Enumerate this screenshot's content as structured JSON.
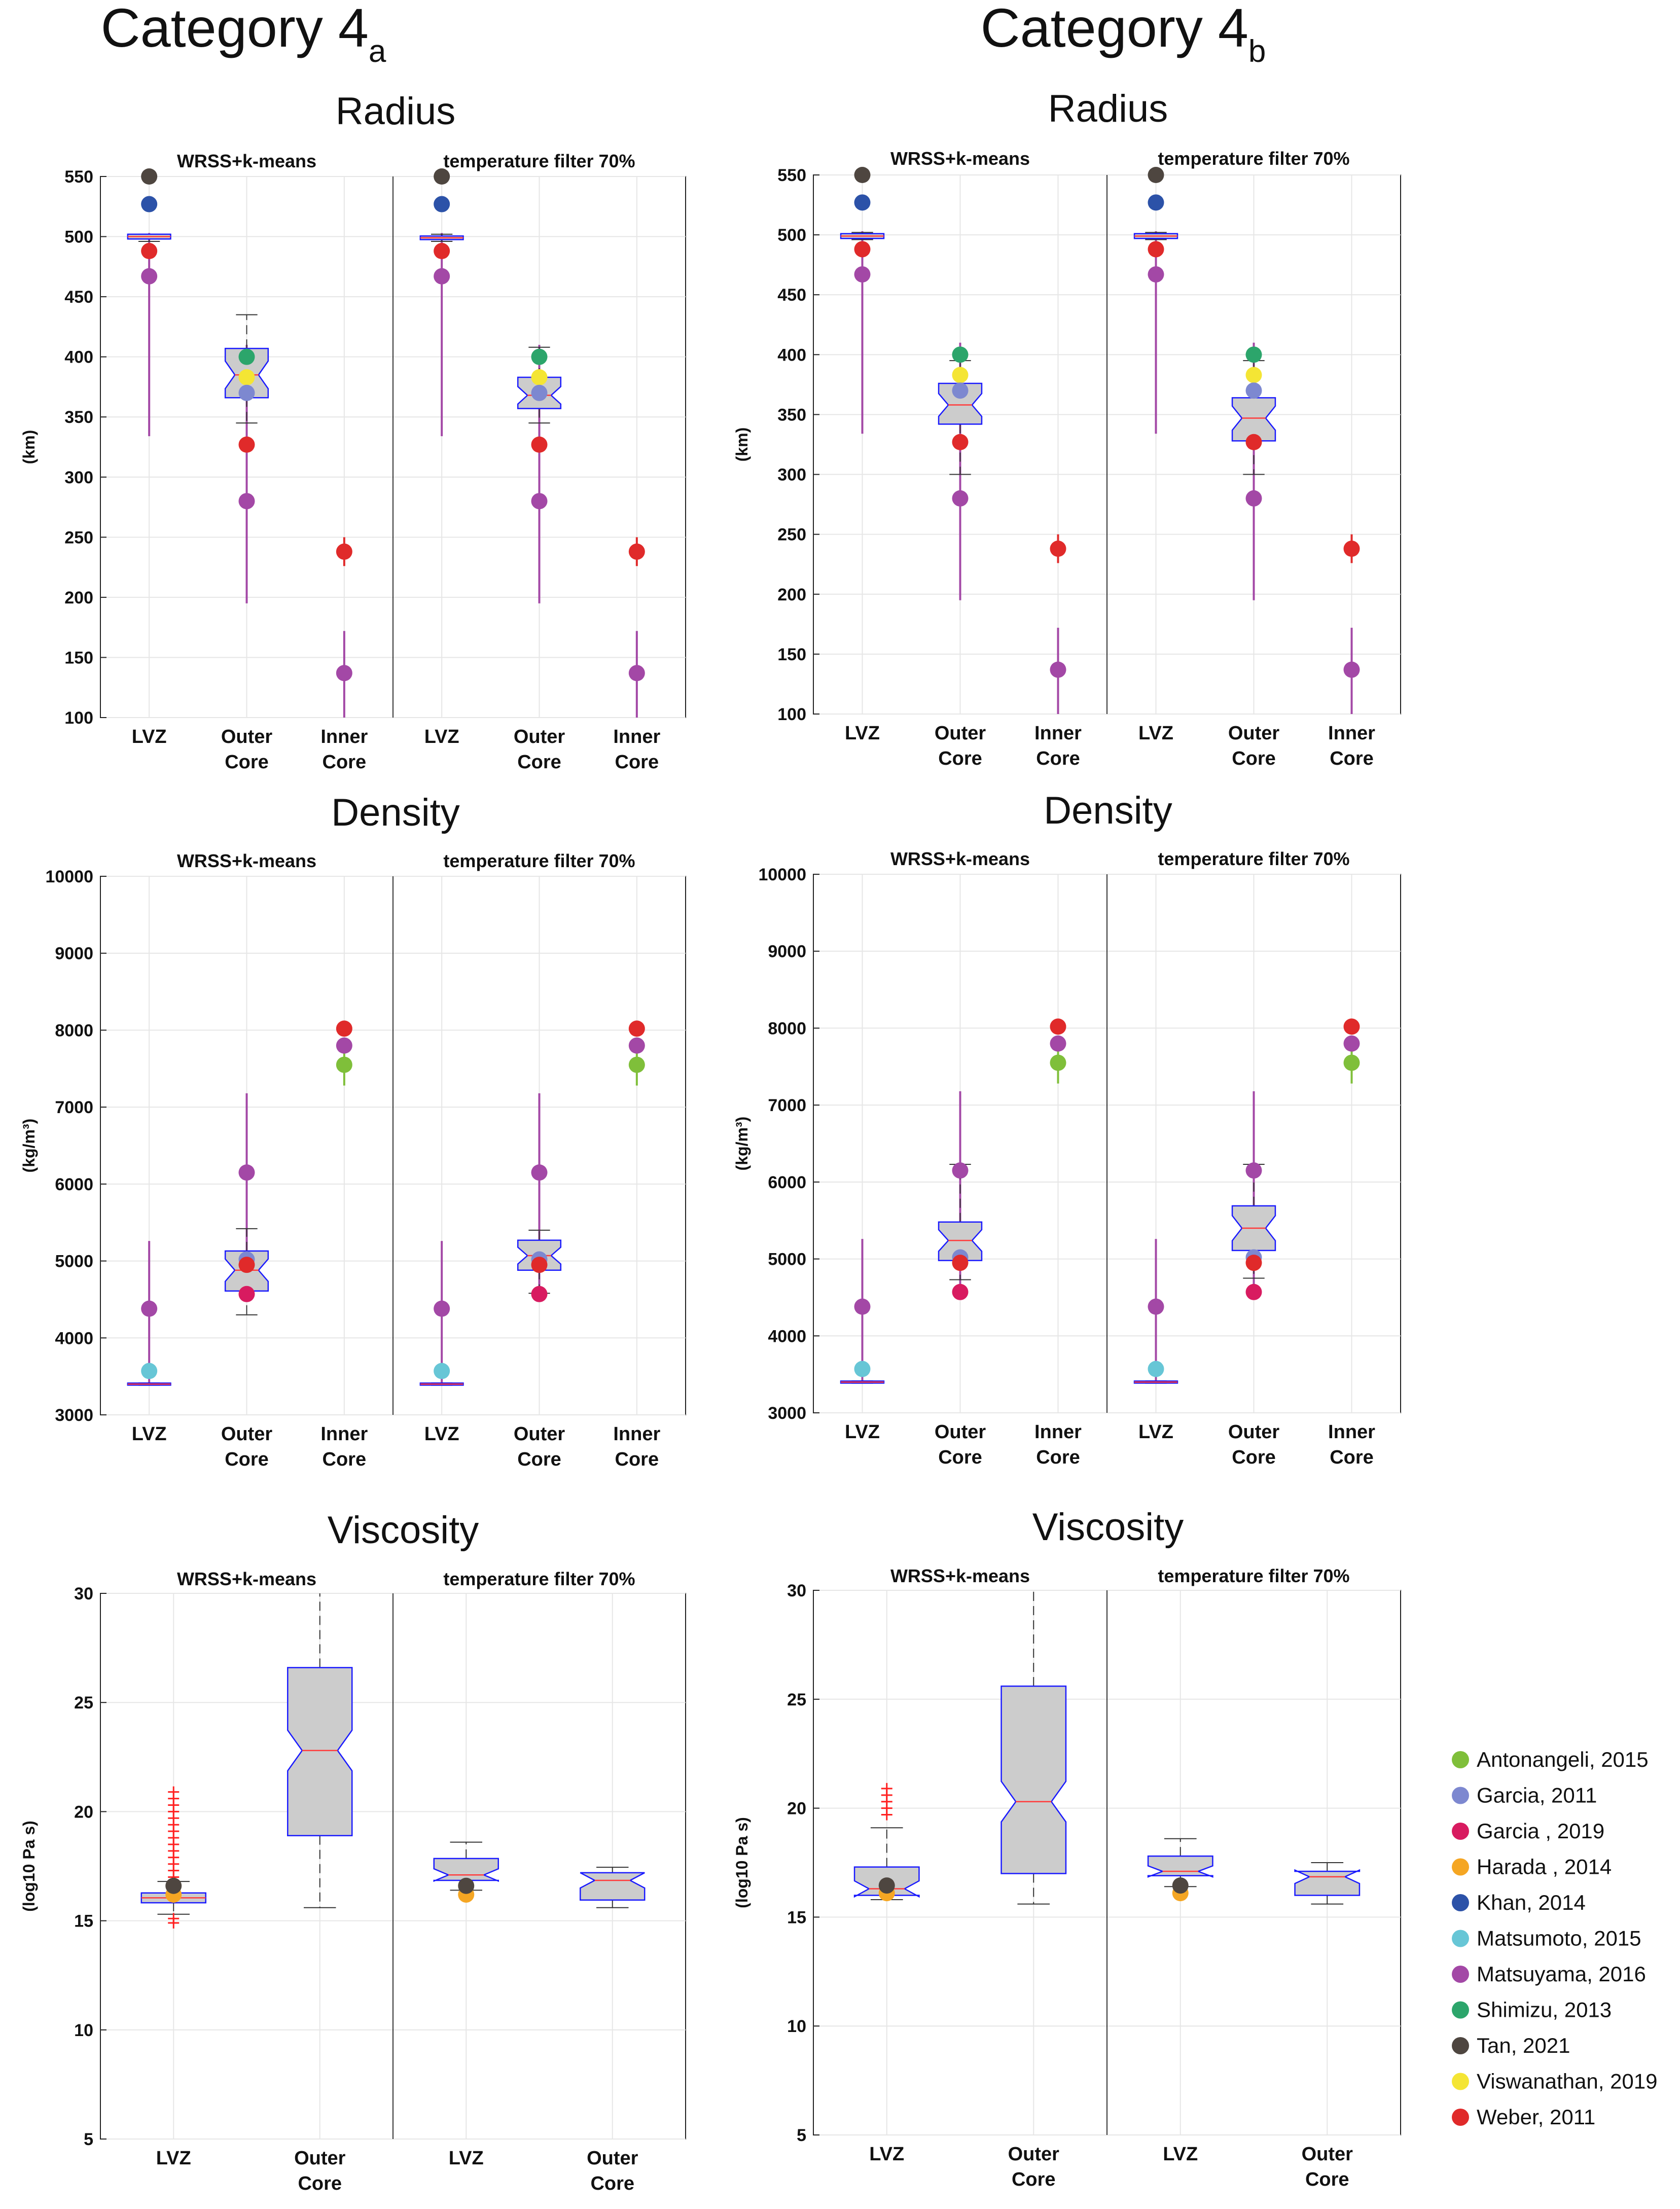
{
  "colors": {
    "Antonangeli, 2015": "#7fbf3a",
    "Garcia, 2011": "#7d88d0",
    "Garcia , 2019": "#d81b60",
    "Harada , 2014": "#f5a623",
    "Khan, 2014": "#2c52a8",
    "Matsumoto, 2015": "#67c6d6",
    "Matsuyama, 2016": "#a348a6",
    "Shimizu, 2013": "#2ca56b",
    "Tan, 2021": "#4e4640",
    "Viswanathan, 2019": "#f4e534",
    "Weber, 2011": "#e02a2a",
    "box_fill": "#cccccc",
    "box_edge": "#1a1aff",
    "median": "#ff3b3b",
    "whisker": "#333333",
    "range_line": "#a63aa0",
    "outlier": "#ff2020"
  },
  "legend": {
    "items": [
      "Antonangeli, 2015",
      "Garcia, 2011",
      "Garcia , 2019",
      "Harada , 2014",
      "Khan, 2014",
      "Matsumoto, 2015",
      "Matsuyama, 2016",
      "Shimizu, 2013",
      "Tan, 2021",
      "Viswanathan, 2019",
      "Weber, 2011"
    ]
  },
  "figure": {
    "columns": [
      {
        "title": "Category 4",
        "subscript": "a"
      },
      {
        "title": "Category 4",
        "subscript": "b"
      }
    ],
    "panel_titles": [
      "WRSS+k-means",
      "temperature filter 70%"
    ]
  },
  "chart_data": [
    {
      "id": "radius_4a",
      "type": "boxplot",
      "title": "Radius",
      "ylabel": "(km)",
      "ylim": [
        100,
        550
      ],
      "yticks": [
        100,
        150,
        200,
        250,
        300,
        350,
        400,
        450,
        500,
        550
      ],
      "categories": [
        "LVZ",
        "Outer Core",
        "Inner Core"
      ],
      "panels": [
        {
          "title": "WRSS+k-means",
          "boxes": [
            {
              "category": "LVZ",
              "q1": 497,
              "median": 500,
              "q3": 501,
              "whisker_low": 496,
              "whisker_high": 502,
              "notch": false
            },
            {
              "category": "Outer Core",
              "q1": 366,
              "median": 385,
              "q3": 407,
              "whisker_low": 345,
              "whisker_high": 435,
              "notch": true
            }
          ]
        },
        {
          "title": "temperature filter 70%",
          "boxes": [
            {
              "category": "LVZ",
              "q1": 497,
              "median": 499,
              "q3": 500,
              "whisker_low": 496,
              "whisker_high": 502,
              "notch": false
            },
            {
              "category": "Outer Core",
              "q1": 357,
              "median": 368,
              "q3": 383,
              "whisker_low": 345,
              "whisker_high": 408,
              "notch": true
            }
          ]
        }
      ],
      "references": [
        {
          "category": "LVZ",
          "source": "Tan, 2021",
          "value": 550
        },
        {
          "category": "LVZ",
          "source": "Khan, 2014",
          "value": 527
        },
        {
          "category": "LVZ",
          "source": "Weber, 2011",
          "value": 488
        },
        {
          "category": "LVZ",
          "source": "Matsuyama, 2016",
          "value": 467,
          "range": [
            334,
            503
          ]
        },
        {
          "category": "Outer Core",
          "source": "Shimizu, 2013",
          "value": 400
        },
        {
          "category": "Outer Core",
          "source": "Viswanathan, 2019",
          "value": 383
        },
        {
          "category": "Outer Core",
          "source": "Garcia, 2011",
          "value": 370
        },
        {
          "category": "Outer Core",
          "source": "Weber, 2011",
          "value": 327
        },
        {
          "category": "Outer Core",
          "source": "Matsuyama, 2016",
          "value": 280,
          "range": [
            195,
            410
          ]
        },
        {
          "category": "Inner Core",
          "source": "Weber, 2011",
          "value": 238,
          "range": [
            226,
            250
          ]
        },
        {
          "category": "Inner Core",
          "source": "Matsuyama, 2016",
          "value": 137,
          "range": [
            100,
            172
          ]
        }
      ]
    },
    {
      "id": "radius_4b",
      "type": "boxplot",
      "title": "Radius",
      "ylabel": "(km)",
      "ylim": [
        100,
        550
      ],
      "yticks": [
        100,
        150,
        200,
        250,
        300,
        350,
        400,
        450,
        500,
        550
      ],
      "categories": [
        "LVZ",
        "Outer Core",
        "Inner Core"
      ],
      "panels": [
        {
          "title": "WRSS+k-means",
          "boxes": [
            {
              "category": "LVZ",
              "q1": 497,
              "median": 499,
              "q3": 501,
              "whisker_low": 496,
              "whisker_high": 502,
              "notch": false
            },
            {
              "category": "Outer Core",
              "q1": 342,
              "median": 358,
              "q3": 376,
              "whisker_low": 300,
              "whisker_high": 395,
              "notch": true
            }
          ]
        },
        {
          "title": "temperature filter 70%",
          "boxes": [
            {
              "category": "LVZ",
              "q1": 497,
              "median": 499,
              "q3": 501,
              "whisker_low": 496,
              "whisker_high": 502,
              "notch": false
            },
            {
              "category": "Outer Core",
              "q1": 328,
              "median": 347,
              "q3": 364,
              "whisker_low": 300,
              "whisker_high": 395,
              "notch": true
            }
          ]
        }
      ],
      "references": [
        {
          "category": "LVZ",
          "source": "Tan, 2021",
          "value": 550
        },
        {
          "category": "LVZ",
          "source": "Khan, 2014",
          "value": 527
        },
        {
          "category": "LVZ",
          "source": "Weber, 2011",
          "value": 488
        },
        {
          "category": "LVZ",
          "source": "Matsuyama, 2016",
          "value": 467,
          "range": [
            334,
            503
          ]
        },
        {
          "category": "Outer Core",
          "source": "Shimizu, 2013",
          "value": 400
        },
        {
          "category": "Outer Core",
          "source": "Viswanathan, 2019",
          "value": 383
        },
        {
          "category": "Outer Core",
          "source": "Garcia, 2011",
          "value": 370
        },
        {
          "category": "Outer Core",
          "source": "Weber, 2011",
          "value": 327
        },
        {
          "category": "Outer Core",
          "source": "Matsuyama, 2016",
          "value": 280,
          "range": [
            195,
            410
          ]
        },
        {
          "category": "Inner Core",
          "source": "Weber, 2011",
          "value": 238,
          "range": [
            226,
            250
          ]
        },
        {
          "category": "Inner Core",
          "source": "Matsuyama, 2016",
          "value": 137,
          "range": [
            100,
            172
          ]
        }
      ]
    },
    {
      "id": "density_4a",
      "type": "boxplot",
      "title": "Density",
      "ylabel": "(kg/m³)",
      "ylim": [
        3000,
        10000
      ],
      "yticks": [
        3000,
        4000,
        5000,
        6000,
        7000,
        8000,
        9000,
        10000
      ],
      "categories": [
        "LVZ",
        "Outer Core",
        "Inner Core"
      ],
      "panels": [
        {
          "title": "WRSS+k-means",
          "boxes": [
            {
              "category": "LVZ",
              "q1": 3390,
              "median": 3400,
              "q3": 3410,
              "whisker_low": 3385,
              "whisker_high": 3415,
              "notch": false
            },
            {
              "category": "Outer Core",
              "q1": 4610,
              "median": 4880,
              "q3": 5130,
              "whisker_low": 4300,
              "whisker_high": 5420,
              "notch": true
            }
          ]
        },
        {
          "title": "temperature filter 70%",
          "boxes": [
            {
              "category": "LVZ",
              "q1": 3390,
              "median": 3400,
              "q3": 3410,
              "whisker_low": 3385,
              "whisker_high": 3415,
              "notch": false
            },
            {
              "category": "Outer Core",
              "q1": 4880,
              "median": 5070,
              "q3": 5270,
              "whisker_low": 4580,
              "whisker_high": 5400,
              "notch": true
            }
          ]
        }
      ],
      "references": [
        {
          "category": "LVZ",
          "source": "Matsuyama, 2016",
          "value": 4380,
          "range": [
            3400,
            5260
          ]
        },
        {
          "category": "LVZ",
          "source": "Matsumoto, 2015",
          "value": 3570
        },
        {
          "category": "Outer Core",
          "source": "Matsuyama, 2016",
          "value": 6150,
          "range": [
            4600,
            7180
          ]
        },
        {
          "category": "Outer Core",
          "source": "Garcia, 2011",
          "value": 5020
        },
        {
          "category": "Outer Core",
          "source": "Weber, 2011",
          "value": 4950
        },
        {
          "category": "Outer Core",
          "source": "Garcia , 2019",
          "value": 4570
        },
        {
          "category": "Inner Core",
          "source": "Weber, 2011",
          "value": 8020
        },
        {
          "category": "Inner Core",
          "source": "Matsuyama, 2016",
          "value": 7800
        },
        {
          "category": "Inner Core",
          "source": "Antonangeli, 2015",
          "value": 7550,
          "range": [
            7280,
            7700
          ]
        }
      ]
    },
    {
      "id": "density_4b",
      "type": "boxplot",
      "title": "Density",
      "ylabel": "(kg/m³)",
      "ylim": [
        3000,
        10000
      ],
      "yticks": [
        3000,
        4000,
        5000,
        6000,
        7000,
        8000,
        9000,
        10000
      ],
      "categories": [
        "LVZ",
        "Outer Core",
        "Inner Core"
      ],
      "panels": [
        {
          "title": "WRSS+k-means",
          "boxes": [
            {
              "category": "LVZ",
              "q1": 3390,
              "median": 3400,
              "q3": 3410,
              "whisker_low": 3385,
              "whisker_high": 3415,
              "notch": false
            },
            {
              "category": "Outer Core",
              "q1": 4980,
              "median": 5240,
              "q3": 5480,
              "whisker_low": 4730,
              "whisker_high": 6230,
              "notch": true
            }
          ]
        },
        {
          "title": "temperature filter 70%",
          "boxes": [
            {
              "category": "LVZ",
              "q1": 3390,
              "median": 3400,
              "q3": 3410,
              "whisker_low": 3385,
              "whisker_high": 3415,
              "notch": false
            },
            {
              "category": "Outer Core",
              "q1": 5110,
              "median": 5400,
              "q3": 5690,
              "whisker_low": 4750,
              "whisker_high": 6230,
              "notch": true
            }
          ]
        }
      ],
      "references": [
        {
          "category": "LVZ",
          "source": "Matsuyama, 2016",
          "value": 4380,
          "range": [
            3400,
            5260
          ]
        },
        {
          "category": "LVZ",
          "source": "Matsumoto, 2015",
          "value": 3570
        },
        {
          "category": "Outer Core",
          "source": "Matsuyama, 2016",
          "value": 6150,
          "range": [
            4600,
            7180
          ]
        },
        {
          "category": "Outer Core",
          "source": "Garcia, 2011",
          "value": 5020
        },
        {
          "category": "Outer Core",
          "source": "Weber, 2011",
          "value": 4950
        },
        {
          "category": "Outer Core",
          "source": "Garcia , 2019",
          "value": 4570
        },
        {
          "category": "Inner Core",
          "source": "Weber, 2011",
          "value": 8020
        },
        {
          "category": "Inner Core",
          "source": "Matsuyama, 2016",
          "value": 7800
        },
        {
          "category": "Inner Core",
          "source": "Antonangeli, 2015",
          "value": 7550,
          "range": [
            7280,
            7700
          ]
        }
      ]
    },
    {
      "id": "viscosity_4a",
      "type": "boxplot",
      "title": "Viscosity",
      "ylabel": "(log10 Pa s)",
      "ylim": [
        5,
        30
      ],
      "yticks": [
        5,
        10,
        15,
        20,
        25,
        30
      ],
      "categories": [
        "LVZ",
        "Outer Core"
      ],
      "panels": [
        {
          "title": "WRSS+k-means",
          "boxes": [
            {
              "category": "LVZ",
              "q1": 15.85,
              "median": 16.05,
              "q3": 16.3,
              "whisker_low": 15.3,
              "whisker_high": 16.8,
              "notch": false,
              "outliers": [
                14.9,
                15.1,
                17.0,
                17.3,
                17.6,
                17.9,
                18.2,
                18.5,
                18.8,
                19.1,
                19.4,
                19.7,
                20.0,
                20.3,
                20.6,
                20.9
              ]
            },
            {
              "category": "Outer Core",
              "q1": 18.9,
              "median": 22.8,
              "q3": 26.6,
              "whisker_low": 15.6,
              "whisker_high": 30,
              "notch": true
            }
          ]
        },
        {
          "title": "temperature filter 70%",
          "boxes": [
            {
              "category": "LVZ",
              "q1": 16.85,
              "median": 17.1,
              "q3": 17.85,
              "whisker_low": 16.4,
              "whisker_high": 18.6,
              "notch": true
            },
            {
              "category": "Outer Core",
              "q1": 15.95,
              "median": 16.85,
              "q3": 17.2,
              "whisker_low": 15.6,
              "whisker_high": 17.45,
              "notch": true
            }
          ]
        }
      ],
      "references": [
        {
          "category": "LVZ",
          "source": "Harada , 2014",
          "value": 16.2
        },
        {
          "category": "LVZ",
          "source": "Tan, 2021",
          "value": 16.6
        }
      ]
    },
    {
      "id": "viscosity_4b",
      "type": "boxplot",
      "title": "Viscosity",
      "ylabel": "(log10 Pa s)",
      "ylim": [
        5,
        30
      ],
      "yticks": [
        5,
        10,
        15,
        20,
        25,
        30
      ],
      "categories": [
        "LVZ",
        "Outer Core"
      ],
      "panels": [
        {
          "title": "WRSS+k-means",
          "boxes": [
            {
              "category": "LVZ",
              "q1": 16.0,
              "median": 16.3,
              "q3": 17.3,
              "whisker_low": 15.8,
              "whisker_high": 19.1,
              "notch": true,
              "outliers": [
                19.7,
                20.0,
                20.3,
                20.6,
                20.9
              ]
            },
            {
              "category": "Outer Core",
              "q1": 17.0,
              "median": 20.3,
              "q3": 25.6,
              "whisker_low": 15.6,
              "whisker_high": 30,
              "notch": true
            }
          ]
        },
        {
          "title": "temperature filter 70%",
          "boxes": [
            {
              "category": "LVZ",
              "q1": 16.9,
              "median": 17.1,
              "q3": 17.8,
              "whisker_low": 16.4,
              "whisker_high": 18.6,
              "notch": true
            },
            {
              "category": "Outer Core",
              "q1": 16.0,
              "median": 16.85,
              "q3": 17.1,
              "whisker_low": 15.6,
              "whisker_high": 17.5,
              "notch": true
            }
          ]
        }
      ],
      "references": [
        {
          "category": "LVZ",
          "source": "Harada , 2014",
          "value": 16.1
        },
        {
          "category": "LVZ",
          "source": "Tan, 2021",
          "value": 16.45
        }
      ]
    }
  ]
}
